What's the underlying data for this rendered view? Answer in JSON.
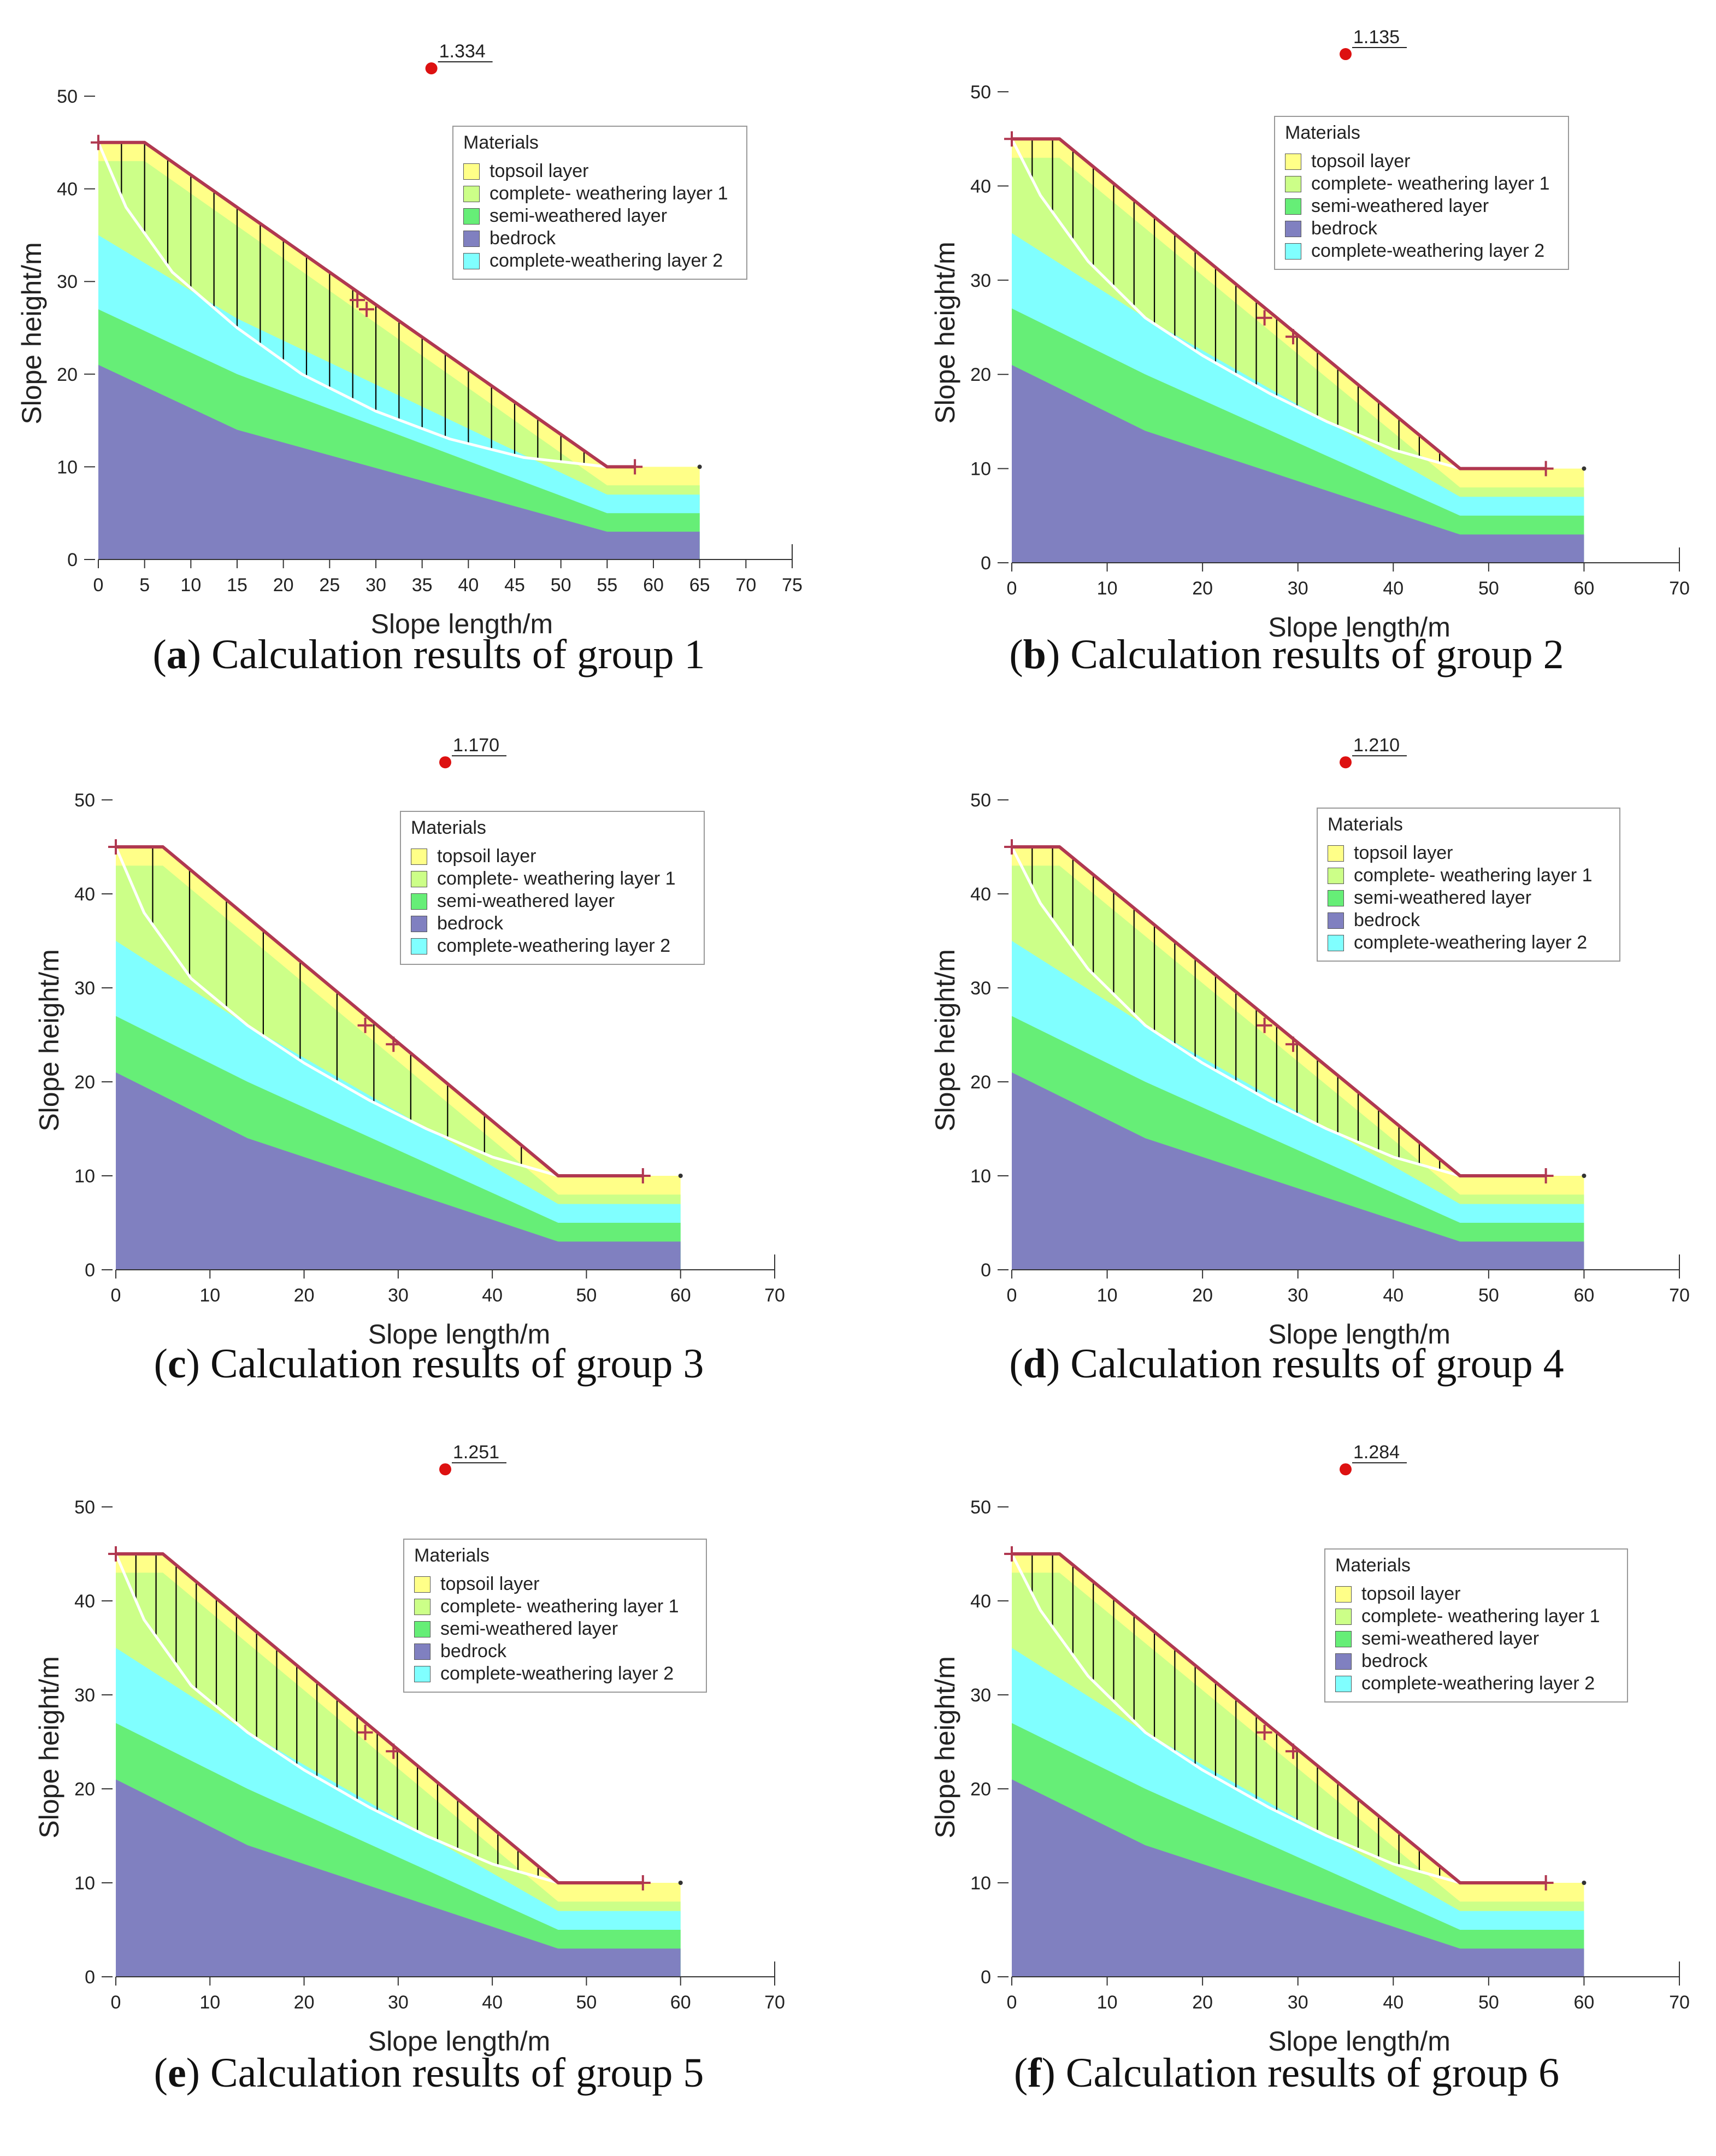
{
  "axis_labels": {
    "x": "Slope length/m",
    "y": "Slope height/m"
  },
  "legend": {
    "title": "Materials",
    "items": [
      {
        "label": "topsoil layer",
        "color": "#ffff88"
      },
      {
        "label": "complete- weathering layer 1",
        "color": "#ccff88"
      },
      {
        "label": "semi-weathered layer",
        "color": "#66ee77"
      },
      {
        "label": "bedrock",
        "color": "#8080c0"
      },
      {
        "label": "complete-weathering layer 2",
        "color": "#80ffff"
      }
    ]
  },
  "colors": {
    "slip_surface": "#ffffff",
    "slope_line": "#b03850",
    "safety_point": "#dd1111",
    "slice_line": "#000000"
  },
  "panels": [
    {
      "letter": "a",
      "caption_text": ") Calculation results of group 1"
    },
    {
      "letter": "b",
      "caption_text": ") Calculation results of group 2"
    },
    {
      "letter": "c",
      "caption_text": ") Calculation results of group 3"
    },
    {
      "letter": "d",
      "caption_text": ") Calculation results of group 4"
    },
    {
      "letter": "e",
      "caption_text": ") Calculation results of group 5"
    },
    {
      "letter": "f",
      "caption_text": ") Calculation results of group 6"
    }
  ],
  "chart_data": [
    {
      "type": "area",
      "xlabel": "Slope length/m",
      "ylabel": "Slope height/m",
      "xlim": [
        0,
        75
      ],
      "ylim": [
        0,
        50
      ],
      "xticks": [
        0,
        5,
        10,
        15,
        20,
        25,
        30,
        35,
        40,
        45,
        50,
        55,
        60,
        65,
        70,
        75
      ],
      "yticks": [
        0,
        10,
        20,
        30,
        40,
        50
      ],
      "safety_factor": "1.334",
      "safety_point": [
        36,
        53
      ],
      "ground_surface": [
        [
          0,
          45
        ],
        [
          5,
          45
        ],
        [
          55,
          10
        ],
        [
          65,
          10
        ]
      ],
      "model_right": 65,
      "markers": [
        [
          0,
          45
        ],
        [
          28,
          28
        ],
        [
          29,
          27
        ],
        [
          58,
          10
        ]
      ],
      "slip_surface": [
        [
          0,
          45
        ],
        [
          3,
          38
        ],
        [
          8,
          31
        ],
        [
          15,
          25
        ],
        [
          22,
          20
        ],
        [
          30,
          16
        ],
        [
          38,
          13
        ],
        [
          46,
          11
        ],
        [
          55,
          10
        ]
      ],
      "slip_entry": 0,
      "slip_exit": 55,
      "layers_top": {
        "complete_weathering_1": [
          [
            0,
            43
          ],
          [
            5,
            43
          ],
          [
            55,
            8
          ],
          [
            65,
            8
          ]
        ],
        "complete_weathering_2": [
          [
            0,
            35
          ],
          [
            15,
            26
          ],
          [
            55,
            7
          ],
          [
            65,
            7
          ]
        ],
        "semi_weathered": [
          [
            0,
            27
          ],
          [
            15,
            20
          ],
          [
            55,
            5
          ],
          [
            65,
            5
          ]
        ],
        "bedrock": [
          [
            0,
            21
          ],
          [
            15,
            14
          ],
          [
            55,
            3
          ],
          [
            65,
            3
          ]
        ]
      },
      "slices": 22
    },
    {
      "type": "area",
      "xlabel": "Slope length/m",
      "ylabel": "Slope height/m",
      "xlim": [
        0,
        70
      ],
      "ylim": [
        0,
        50
      ],
      "xticks": [
        0,
        10,
        20,
        30,
        40,
        50,
        60,
        70
      ],
      "yticks": [
        0,
        10,
        20,
        30,
        40,
        50
      ],
      "safety_factor": "1.135",
      "safety_point": [
        35,
        54
      ],
      "ground_surface": [
        [
          0,
          45
        ],
        [
          5,
          45
        ],
        [
          47,
          10
        ],
        [
          60,
          10
        ]
      ],
      "model_right": 60,
      "markers": [
        [
          0,
          45
        ],
        [
          26.5,
          26
        ],
        [
          29.5,
          24
        ],
        [
          56,
          10
        ]
      ],
      "slip_surface": [
        [
          0,
          45
        ],
        [
          3,
          39
        ],
        [
          8,
          32
        ],
        [
          14,
          26
        ],
        [
          20,
          22
        ],
        [
          27,
          18
        ],
        [
          33,
          15
        ],
        [
          40,
          12
        ],
        [
          47,
          10
        ]
      ],
      "slip_entry": 0,
      "slip_exit": 47,
      "layers_top": {
        "complete_weathering_1": [
          [
            0,
            43
          ],
          [
            5,
            43
          ],
          [
            47,
            8
          ],
          [
            60,
            8
          ]
        ],
        "complete_weathering_2": [
          [
            0,
            35
          ],
          [
            14,
            26
          ],
          [
            47,
            7
          ],
          [
            60,
            7
          ]
        ],
        "semi_weathered": [
          [
            0,
            27
          ],
          [
            14,
            20
          ],
          [
            47,
            5
          ],
          [
            60,
            5
          ]
        ],
        "bedrock": [
          [
            0,
            21
          ],
          [
            14,
            14
          ],
          [
            47,
            3
          ],
          [
            60,
            3
          ]
        ]
      },
      "slices": 22
    },
    {
      "type": "area",
      "xlabel": "Slope length/m",
      "ylabel": "Slope height/m",
      "xlim": [
        0,
        70
      ],
      "ylim": [
        0,
        50
      ],
      "xticks": [
        0,
        10,
        20,
        30,
        40,
        50,
        60,
        70
      ],
      "yticks": [
        0,
        10,
        20,
        30,
        40,
        50
      ],
      "safety_factor": "1.170",
      "safety_point": [
        35,
        54
      ],
      "ground_surface": [
        [
          0,
          45
        ],
        [
          5,
          45
        ],
        [
          47,
          10
        ],
        [
          60,
          10
        ]
      ],
      "model_right": 60,
      "markers": [
        [
          0,
          45
        ],
        [
          26.5,
          26
        ],
        [
          29.5,
          24
        ],
        [
          56,
          10
        ]
      ],
      "slip_surface": [
        [
          0,
          45
        ],
        [
          3,
          38
        ],
        [
          8,
          31
        ],
        [
          14,
          26
        ],
        [
          20,
          22
        ],
        [
          27,
          18
        ],
        [
          33,
          15
        ],
        [
          40,
          12
        ],
        [
          47,
          10
        ]
      ],
      "slip_entry": 0,
      "slip_exit": 47,
      "layers_top": {
        "complete_weathering_1": [
          [
            0,
            43
          ],
          [
            5,
            43
          ],
          [
            47,
            8
          ],
          [
            60,
            8
          ]
        ],
        "complete_weathering_2": [
          [
            0,
            35
          ],
          [
            14,
            26
          ],
          [
            47,
            7
          ],
          [
            60,
            7
          ]
        ],
        "semi_weathered": [
          [
            0,
            27
          ],
          [
            14,
            20
          ],
          [
            47,
            5
          ],
          [
            60,
            5
          ]
        ],
        "bedrock": [
          [
            0,
            21
          ],
          [
            14,
            14
          ],
          [
            47,
            3
          ],
          [
            60,
            3
          ]
        ]
      },
      "slices": 12
    },
    {
      "type": "area",
      "xlabel": "Slope length/m",
      "ylabel": "Slope height/m",
      "xlim": [
        0,
        70
      ],
      "ylim": [
        0,
        50
      ],
      "xticks": [
        0,
        10,
        20,
        30,
        40,
        50,
        60,
        70
      ],
      "yticks": [
        0,
        10,
        20,
        30,
        40,
        50
      ],
      "safety_factor": "1.210",
      "safety_point": [
        35,
        54
      ],
      "ground_surface": [
        [
          0,
          45
        ],
        [
          5,
          45
        ],
        [
          47,
          10
        ],
        [
          60,
          10
        ]
      ],
      "model_right": 60,
      "markers": [
        [
          0,
          45
        ],
        [
          26.5,
          26
        ],
        [
          29.5,
          24
        ],
        [
          56,
          10
        ]
      ],
      "slip_surface": [
        [
          0,
          45
        ],
        [
          3,
          39
        ],
        [
          8,
          32
        ],
        [
          14,
          26
        ],
        [
          20,
          22
        ],
        [
          27,
          18
        ],
        [
          33,
          15
        ],
        [
          40,
          12
        ],
        [
          47,
          10
        ]
      ],
      "slip_entry": 0,
      "slip_exit": 47,
      "layers_top": {
        "complete_weathering_1": [
          [
            0,
            43
          ],
          [
            5,
            43
          ],
          [
            47,
            8
          ],
          [
            60,
            8
          ]
        ],
        "complete_weathering_2": [
          [
            0,
            35
          ],
          [
            14,
            26
          ],
          [
            47,
            7
          ],
          [
            60,
            7
          ]
        ],
        "semi_weathered": [
          [
            0,
            27
          ],
          [
            14,
            20
          ],
          [
            47,
            5
          ],
          [
            60,
            5
          ]
        ],
        "bedrock": [
          [
            0,
            21
          ],
          [
            14,
            14
          ],
          [
            47,
            3
          ],
          [
            60,
            3
          ]
        ]
      },
      "slices": 22
    },
    {
      "type": "area",
      "xlabel": "Slope length/m",
      "ylabel": "Slope height/m",
      "xlim": [
        0,
        70
      ],
      "ylim": [
        0,
        50
      ],
      "xticks": [
        0,
        10,
        20,
        30,
        40,
        50,
        60,
        70
      ],
      "yticks": [
        0,
        10,
        20,
        30,
        40,
        50
      ],
      "safety_factor": "1.251",
      "safety_point": [
        35,
        54
      ],
      "ground_surface": [
        [
          0,
          45
        ],
        [
          5,
          45
        ],
        [
          47,
          10
        ],
        [
          60,
          10
        ]
      ],
      "model_right": 60,
      "markers": [
        [
          0,
          45
        ],
        [
          26.5,
          26
        ],
        [
          29.5,
          24
        ],
        [
          56,
          10
        ]
      ],
      "slip_surface": [
        [
          0,
          45
        ],
        [
          3,
          38
        ],
        [
          8,
          31
        ],
        [
          14,
          26
        ],
        [
          20,
          22
        ],
        [
          27,
          18
        ],
        [
          33,
          15
        ],
        [
          40,
          12
        ],
        [
          47,
          10
        ]
      ],
      "slip_entry": 0,
      "slip_exit": 47,
      "layers_top": {
        "complete_weathering_1": [
          [
            0,
            43
          ],
          [
            5,
            43
          ],
          [
            47,
            8
          ],
          [
            60,
            8
          ]
        ],
        "complete_weathering_2": [
          [
            0,
            35
          ],
          [
            14,
            26
          ],
          [
            47,
            7
          ],
          [
            60,
            7
          ]
        ],
        "semi_weathered": [
          [
            0,
            27
          ],
          [
            14,
            20
          ],
          [
            47,
            5
          ],
          [
            60,
            5
          ]
        ],
        "bedrock": [
          [
            0,
            21
          ],
          [
            14,
            14
          ],
          [
            47,
            3
          ],
          [
            60,
            3
          ]
        ]
      },
      "slices": 22
    },
    {
      "type": "area",
      "xlabel": "Slope length/m",
      "ylabel": "Slope height/m",
      "xlim": [
        0,
        70
      ],
      "ylim": [
        0,
        50
      ],
      "xticks": [
        0,
        10,
        20,
        30,
        40,
        50,
        60,
        70
      ],
      "yticks": [
        0,
        10,
        20,
        30,
        40,
        50
      ],
      "safety_factor": "1.284",
      "safety_point": [
        35,
        54
      ],
      "ground_surface": [
        [
          0,
          45
        ],
        [
          5,
          45
        ],
        [
          47,
          10
        ],
        [
          60,
          10
        ]
      ],
      "model_right": 60,
      "markers": [
        [
          0,
          45
        ],
        [
          26.5,
          26
        ],
        [
          29.5,
          24
        ],
        [
          56,
          10
        ]
      ],
      "slip_surface": [
        [
          0,
          45
        ],
        [
          3,
          39
        ],
        [
          8,
          32
        ],
        [
          14,
          26
        ],
        [
          20,
          22
        ],
        [
          27,
          18
        ],
        [
          33,
          15
        ],
        [
          40,
          12
        ],
        [
          47,
          10
        ]
      ],
      "slip_entry": 0,
      "slip_exit": 47,
      "layers_top": {
        "complete_weathering_1": [
          [
            0,
            43
          ],
          [
            5,
            43
          ],
          [
            47,
            8
          ],
          [
            60,
            8
          ]
        ],
        "complete_weathering_2": [
          [
            0,
            35
          ],
          [
            14,
            26
          ],
          [
            47,
            7
          ],
          [
            60,
            7
          ]
        ],
        "semi_weathered": [
          [
            0,
            27
          ],
          [
            14,
            20
          ],
          [
            47,
            5
          ],
          [
            60,
            5
          ]
        ],
        "bedrock": [
          [
            0,
            21
          ],
          [
            14,
            14
          ],
          [
            47,
            3
          ],
          [
            60,
            3
          ]
        ]
      },
      "slices": 22
    }
  ]
}
